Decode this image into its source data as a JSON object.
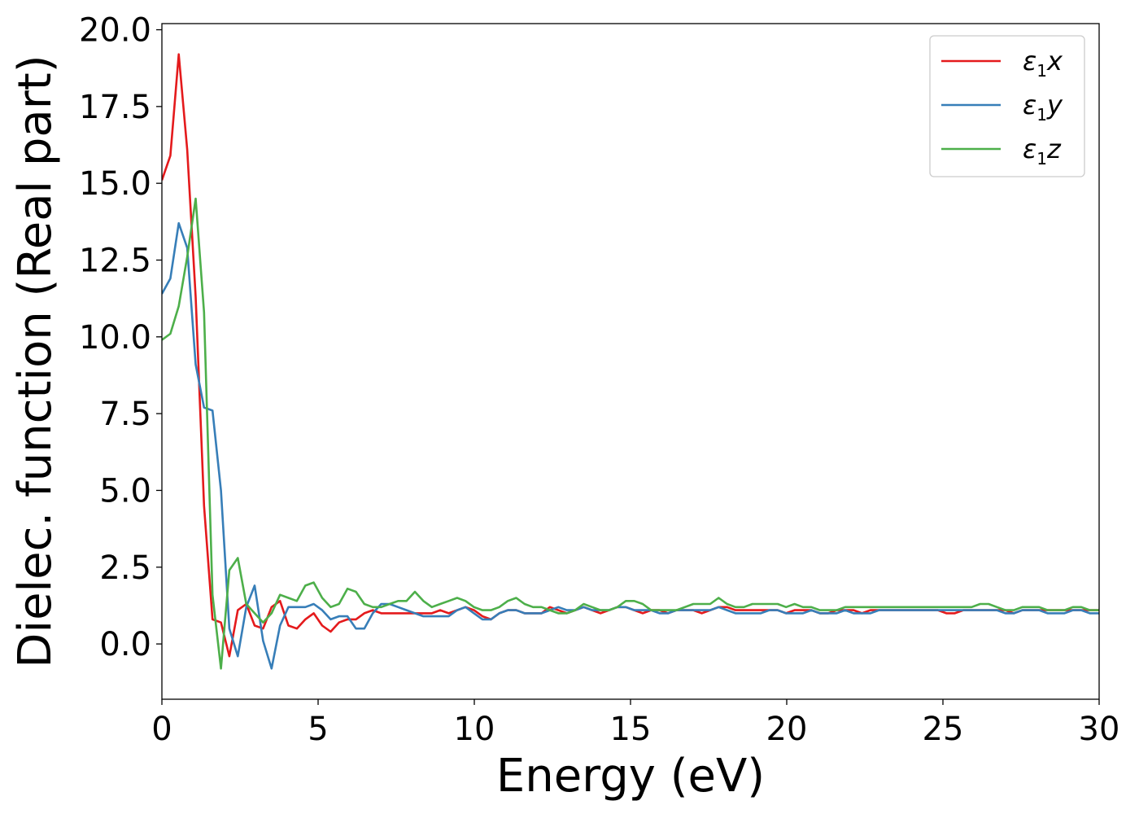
{
  "chart_data": {
    "type": "line",
    "xlabel": "Energy (eV)",
    "ylabel": "Dielec. function (Real part)",
    "xlim": [
      0,
      30
    ],
    "ylim": [
      -1.8,
      20.2
    ],
    "xticks": [
      0,
      5,
      10,
      15,
      20,
      25,
      30
    ],
    "xtick_labels": [
      "0",
      "5",
      "10",
      "15",
      "20",
      "25",
      "30"
    ],
    "yticks": [
      0,
      2.5,
      5,
      7.5,
      10,
      12.5,
      15,
      17.5,
      20
    ],
    "ytick_labels": [
      "0.0",
      "2.5",
      "5.0",
      "7.5",
      "10.0",
      "12.5",
      "15.0",
      "17.5",
      "20.0"
    ],
    "grid": false,
    "legend_position": "top-right",
    "x": [
      0.0,
      0.27,
      0.54,
      0.81,
      1.08,
      1.35,
      1.62,
      1.89,
      2.16,
      2.43,
      2.7,
      2.97,
      3.24,
      3.51,
      3.78,
      4.05,
      4.32,
      4.59,
      4.86,
      5.13,
      5.4,
      5.67,
      5.94,
      6.21,
      6.48,
      6.75,
      7.02,
      7.29,
      7.56,
      7.83,
      8.1,
      8.37,
      8.64,
      8.91,
      9.18,
      9.45,
      9.72,
      9.99,
      10.26,
      10.53,
      10.8,
      11.07,
      11.34,
      11.61,
      11.88,
      12.15,
      12.42,
      12.69,
      12.96,
      13.23,
      13.5,
      13.77,
      14.04,
      14.31,
      14.58,
      14.85,
      15.12,
      15.39,
      15.66,
      15.93,
      16.2,
      16.47,
      16.74,
      17.01,
      17.28,
      17.55,
      17.82,
      18.09,
      18.36,
      18.63,
      18.9,
      19.17,
      19.44,
      19.71,
      19.98,
      20.25,
      20.52,
      20.79,
      21.06,
      21.33,
      21.6,
      21.87,
      22.14,
      22.41,
      22.68,
      22.95,
      23.22,
      23.49,
      23.76,
      24.03,
      24.3,
      24.57,
      24.84,
      25.11,
      25.38,
      25.65,
      25.92,
      26.19,
      26.46,
      26.73,
      27.0,
      27.27,
      27.54,
      27.81,
      28.08,
      28.35,
      28.62,
      28.89,
      29.16,
      29.43,
      29.7,
      30.0
    ],
    "series": [
      {
        "name": "ε1x",
        "color": "#e41a1c",
        "values": [
          15.1,
          15.9,
          19.2,
          16.1,
          11.3,
          4.5,
          0.8,
          0.7,
          -0.4,
          1.1,
          1.3,
          0.6,
          0.5,
          1.2,
          1.4,
          0.6,
          0.5,
          0.8,
          1.0,
          0.6,
          0.4,
          0.7,
          0.8,
          0.8,
          1.0,
          1.1,
          1.0,
          1.0,
          1.0,
          1.0,
          1.0,
          1.0,
          1.0,
          1.1,
          1.0,
          1.1,
          1.2,
          1.1,
          0.9,
          0.8,
          1.0,
          1.1,
          1.1,
          1.0,
          1.0,
          1.0,
          1.2,
          1.1,
          1.0,
          1.1,
          1.2,
          1.1,
          1.0,
          1.1,
          1.2,
          1.2,
          1.1,
          1.0,
          1.1,
          1.1,
          1.0,
          1.1,
          1.1,
          1.1,
          1.0,
          1.1,
          1.2,
          1.2,
          1.1,
          1.1,
          1.1,
          1.1,
          1.1,
          1.1,
          1.0,
          1.1,
          1.1,
          1.1,
          1.0,
          1.0,
          1.1,
          1.1,
          1.1,
          1.0,
          1.1,
          1.1,
          1.1,
          1.1,
          1.1,
          1.1,
          1.1,
          1.1,
          1.1,
          1.0,
          1.0,
          1.1,
          1.1,
          1.1,
          1.1,
          1.1,
          1.1,
          1.0,
          1.1,
          1.1,
          1.1,
          1.1,
          1.1,
          1.1,
          1.1,
          1.1,
          1.1,
          1.1
        ]
      },
      {
        "name": "ε1y",
        "color": "#377eb8",
        "values": [
          11.4,
          11.9,
          13.7,
          12.9,
          9.1,
          7.7,
          7.6,
          5.0,
          0.5,
          -0.4,
          1.2,
          1.9,
          0.1,
          -0.8,
          0.6,
          1.2,
          1.2,
          1.2,
          1.3,
          1.1,
          0.8,
          0.9,
          0.9,
          0.5,
          0.5,
          1.0,
          1.3,
          1.3,
          1.2,
          1.1,
          1.0,
          0.9,
          0.9,
          0.9,
          0.9,
          1.1,
          1.2,
          1.0,
          0.8,
          0.8,
          1.0,
          1.1,
          1.1,
          1.0,
          1.0,
          1.0,
          1.1,
          1.2,
          1.1,
          1.1,
          1.2,
          1.1,
          1.1,
          1.1,
          1.2,
          1.2,
          1.1,
          1.1,
          1.1,
          1.0,
          1.0,
          1.1,
          1.1,
          1.1,
          1.1,
          1.1,
          1.2,
          1.1,
          1.0,
          1.0,
          1.0,
          1.0,
          1.1,
          1.1,
          1.0,
          1.0,
          1.0,
          1.1,
          1.0,
          1.0,
          1.0,
          1.1,
          1.0,
          1.0,
          1.0,
          1.1,
          1.1,
          1.1,
          1.1,
          1.1,
          1.1,
          1.1,
          1.1,
          1.1,
          1.1,
          1.1,
          1.1,
          1.1,
          1.1,
          1.1,
          1.0,
          1.0,
          1.1,
          1.1,
          1.1,
          1.0,
          1.0,
          1.0,
          1.1,
          1.1,
          1.0,
          1.0
        ]
      },
      {
        "name": "ε1z",
        "color": "#4daf4a",
        "values": [
          9.9,
          10.1,
          11.0,
          12.6,
          14.5,
          10.8,
          1.6,
          -0.8,
          2.4,
          2.8,
          1.3,
          1.0,
          0.7,
          1.0,
          1.6,
          1.5,
          1.4,
          1.9,
          2.0,
          1.5,
          1.2,
          1.3,
          1.8,
          1.7,
          1.3,
          1.2,
          1.2,
          1.3,
          1.4,
          1.4,
          1.7,
          1.4,
          1.2,
          1.3,
          1.4,
          1.5,
          1.4,
          1.2,
          1.1,
          1.1,
          1.2,
          1.4,
          1.5,
          1.3,
          1.2,
          1.2,
          1.1,
          1.0,
          1.0,
          1.1,
          1.3,
          1.2,
          1.1,
          1.1,
          1.2,
          1.4,
          1.4,
          1.3,
          1.1,
          1.1,
          1.1,
          1.1,
          1.2,
          1.3,
          1.3,
          1.3,
          1.5,
          1.3,
          1.2,
          1.2,
          1.3,
          1.3,
          1.3,
          1.3,
          1.2,
          1.3,
          1.2,
          1.2,
          1.1,
          1.1,
          1.1,
          1.2,
          1.2,
          1.2,
          1.2,
          1.2,
          1.2,
          1.2,
          1.2,
          1.2,
          1.2,
          1.2,
          1.2,
          1.2,
          1.2,
          1.2,
          1.2,
          1.3,
          1.3,
          1.2,
          1.1,
          1.1,
          1.2,
          1.2,
          1.2,
          1.1,
          1.1,
          1.1,
          1.2,
          1.2,
          1.1,
          1.1
        ]
      }
    ]
  }
}
